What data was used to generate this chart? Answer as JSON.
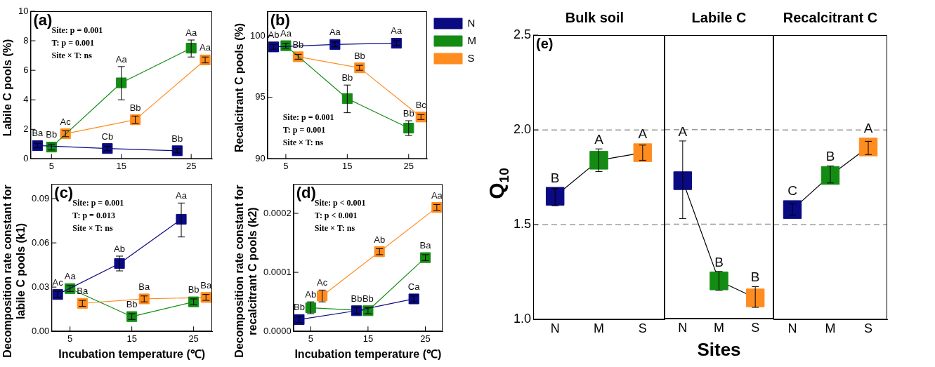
{
  "chart_data": [
    {
      "type": "line",
      "ylabel": "Labile C pools (%)",
      "xlim": [
        2,
        28
      ],
      "xticks": [
        5,
        15,
        25
      ],
      "ylim": [
        0,
        10
      ],
      "yticks": [
        0,
        2,
        4,
        6,
        8,
        10
      ],
      "marker": "square",
      "annotations": [
        "(a)",
        "Site: p = 0.001",
        "T: p = 0.001",
        "Site × T: ns"
      ],
      "series": [
        {
          "color": "#0a0a82",
          "x": [
            3,
            13,
            23
          ],
          "values": [
            0.9,
            0.7,
            0.55
          ],
          "errors": [
            0.15,
            0.15,
            0.15
          ],
          "value_labels": [
            "Ba",
            "Cb",
            "Bb"
          ]
        },
        {
          "color": "#148c14",
          "x": [
            5,
            15,
            25
          ],
          "values": [
            0.8,
            5.15,
            7.5
          ],
          "errors": [
            0.2,
            [
              4.0,
              6.25
            ],
            [
              6.9,
              8.05
            ]
          ],
          "value_labels": [
            "Bb",
            "Aa",
            "Aa"
          ]
        },
        {
          "color": "#ff8c1e",
          "x": [
            7,
            17,
            27
          ],
          "values": [
            1.7,
            2.65,
            6.7
          ],
          "errors": [
            0.2,
            0.25,
            0.2
          ],
          "value_labels": [
            "Ac",
            "Bb",
            "Aa"
          ]
        }
      ]
    },
    {
      "type": "line",
      "ylabel": "Recalcitrant C pools (%)",
      "xlim": [
        2,
        28
      ],
      "xticks": [
        5,
        15,
        25
      ],
      "ylim": [
        90,
        102
      ],
      "yticks": [
        90,
        95,
        100
      ],
      "marker": "square",
      "legend": "right",
      "annotations": [
        "(b)",
        "Site: p = 0.001",
        "T: p = 0.001",
        "Site × T: ns"
      ],
      "series": [
        {
          "name": "N",
          "color": "#0a0a82",
          "x": [
            3,
            13,
            23
          ],
          "values": [
            99.1,
            99.3,
            99.4
          ],
          "errors": [
            0.2,
            0.2,
            0.2
          ],
          "value_labels": [
            "Ab",
            "Aa",
            "Aa"
          ]
        },
        {
          "name": "M",
          "color": "#148c14",
          "x": [
            5,
            15,
            25
          ],
          "values": [
            99.2,
            94.9,
            92.5
          ],
          "errors": [
            0.2,
            [
              93.75,
              96.0
            ],
            [
              91.9,
              93.1
            ]
          ],
          "value_labels": [
            "Aa",
            "Bb",
            "Bb"
          ]
        },
        {
          "name": "S",
          "color": "#ff8c1e",
          "x": [
            7,
            17,
            27
          ],
          "values": [
            98.3,
            97.4,
            93.4
          ],
          "errors": [
            0.2,
            0.2,
            0.2
          ],
          "value_labels": [
            "Bb",
            "Bb",
            "Bc"
          ]
        }
      ]
    },
    {
      "type": "line",
      "ylabel": "Decomposition rate constant for labile C pools (k1)",
      "xlabel": "Incubation temperature (℃)",
      "xlim": [
        2,
        28
      ],
      "xticks": [
        5,
        15,
        25
      ],
      "ylim": [
        0,
        0.1
      ],
      "yticks": [
        {
          "value": 0,
          "label": "0.00"
        },
        {
          "value": 0.03,
          "label": "0.03"
        },
        {
          "value": 0.06,
          "label": "0.06"
        },
        {
          "value": 0.09,
          "label": "0.09"
        }
      ],
      "marker": "square",
      "annotations": [
        "(c)",
        "Site: p = 0.001",
        "T: p = 0.013",
        "Site × T: ns"
      ],
      "series": [
        {
          "color": "#0a0a82",
          "x": [
            3,
            13,
            23
          ],
          "values": [
            0.025,
            0.046,
            0.076
          ],
          "errors": [
            0.002,
            [
              0.041,
              0.051
            ],
            [
              0.064,
              0.087
            ]
          ],
          "value_labels": [
            "Ac",
            "Ab",
            "Aa"
          ]
        },
        {
          "color": "#148c14",
          "x": [
            5,
            15,
            25
          ],
          "values": [
            0.029,
            0.01,
            0.02
          ],
          "errors": [
            0.002,
            0.002,
            0.002
          ],
          "value_labels": [
            "Aa",
            "Bb",
            "Bb"
          ]
        },
        {
          "color": "#ff8c1e",
          "x": [
            7,
            17,
            27
          ],
          "values": [
            0.019,
            0.022,
            0.023
          ],
          "errors": [
            0.002,
            0.002,
            0.002
          ],
          "value_labels": [
            "Ba",
            "Ba",
            "Ba"
          ]
        }
      ]
    },
    {
      "type": "line",
      "ylabel": "Decomposition rate constant for recalcitrant C pools (k2)",
      "xlabel": "Incubation temperature (℃)",
      "xlim": [
        2,
        28
      ],
      "xticks": [
        5,
        15,
        25
      ],
      "ylim": [
        0,
        0.00025
      ],
      "yticks": [
        {
          "value": 0,
          "label": "0.0000"
        },
        {
          "value": 0.0001,
          "label": "0.0001"
        },
        {
          "value": 0.0002,
          "label": "0.0002"
        }
      ],
      "marker": "square",
      "annotations": [
        "(d)",
        "Site: p < 0.001",
        "T: p < 0.001",
        "Site × T: ns"
      ],
      "series": [
        {
          "color": "#0a0a82",
          "x": [
            3,
            13,
            23
          ],
          "values": [
            2e-05,
            3.5e-05,
            5.5e-05
          ],
          "errors": [
            5e-06,
            5e-06,
            5e-06
          ],
          "value_labels": [
            "Bb",
            "Bb",
            "Ca"
          ]
        },
        {
          "color": "#148c14",
          "x": [
            5,
            15,
            25
          ],
          "values": [
            4e-05,
            3.5e-05,
            0.000125
          ],
          "errors": [
            1e-05,
            5e-06,
            5e-06
          ],
          "value_labels": [
            "Ab",
            "Bb",
            "Ba"
          ]
        },
        {
          "color": "#ff8c1e",
          "x": [
            7,
            17,
            27
          ],
          "values": [
            6e-05,
            0.000135,
            0.00021
          ],
          "errors": [
            1e-05,
            5e-06,
            5e-06
          ],
          "value_labels": [
            "Ac",
            "Ab",
            "Aa"
          ]
        }
      ]
    },
    {
      "type": "line",
      "title": "Bulk soil",
      "ylabel": "Q$_{10}$",
      "categories": [
        "N",
        "M",
        "S"
      ],
      "ylim": [
        1,
        2.5
      ],
      "yticks": [
        {
          "value": 1,
          "label": "1.0"
        },
        1.5,
        {
          "value": 2,
          "label": "2.0"
        },
        2.5
      ],
      "marker": "square",
      "annotations": [
        "(e)"
      ],
      "ref_lines": [
        {
          "axis": "y",
          "value": 1.5,
          "color": "#999999",
          "line_style": "dashed"
        },
        {
          "axis": "y",
          "value": 2,
          "color": "#999999",
          "line_style": "dashed"
        }
      ],
      "series": [
        {
          "color": "#000000",
          "colors": [
            "#0a0a82",
            "#148c14",
            "#ff8c1e"
          ],
          "values": [
            1.65,
            1.84,
            1.88
          ],
          "errors": [
            [
              1.6,
              1.69
            ],
            [
              1.78,
              1.9
            ],
            [
              1.84,
              1.92
            ]
          ],
          "value_labels": [
            "B",
            "A",
            "A"
          ]
        }
      ]
    },
    {
      "type": "line",
      "title": "Labile C",
      "xlabel": "Sites",
      "categories": [
        "N",
        "M",
        "S"
      ],
      "ylim": [
        1,
        2.5
      ],
      "tick_labels": "x",
      "marker": "square",
      "ref_lines": [
        {
          "axis": "y",
          "value": 1.5,
          "color": "#999999",
          "line_style": "dashed"
        },
        {
          "axis": "y",
          "value": 2,
          "color": "#999999",
          "line_style": "dashed"
        }
      ],
      "series": [
        {
          "color": "#000000",
          "colors": [
            "#0a0a82",
            "#148c14",
            "#ff8c1e"
          ],
          "values": [
            1.73,
            1.2,
            1.11
          ],
          "errors": [
            [
              1.53,
              1.94
            ],
            [
              1.15,
              1.25
            ],
            [
              1.06,
              1.17
            ]
          ],
          "value_labels": [
            "A",
            "B",
            "B"
          ]
        }
      ]
    },
    {
      "type": "line",
      "title": "Recalcitrant C",
      "categories": [
        "N",
        "M",
        "S"
      ],
      "ylim": [
        1,
        2.5
      ],
      "tick_labels": "x",
      "marker": "square",
      "ref_lines": [
        {
          "axis": "y",
          "value": 1.5,
          "color": "#999999",
          "line_style": "dashed"
        },
        {
          "axis": "y",
          "value": 2,
          "color": "#999999",
          "line_style": "dashed"
        }
      ],
      "series": [
        {
          "color": "#000000",
          "colors": [
            "#0a0a82",
            "#148c14",
            "#ff8c1e"
          ],
          "values": [
            1.58,
            1.76,
            1.91
          ],
          "errors": [
            [
              1.55,
              1.61
            ],
            [
              1.72,
              1.81
            ],
            [
              1.87,
              1.94
            ]
          ],
          "value_labels": [
            "C",
            "B",
            "A"
          ]
        }
      ]
    }
  ]
}
